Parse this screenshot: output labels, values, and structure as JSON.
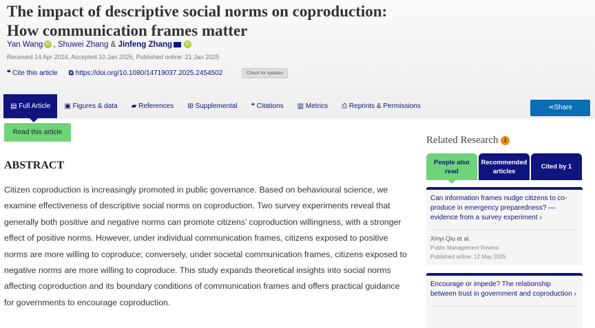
{
  "article": {
    "title_line1": "The impact of descriptive social norms on coproduction:",
    "title_line2": "How communication frames matter",
    "authors": [
      "Yan Wang",
      "Shuwei Zhang",
      "Jinfeng Zhang"
    ],
    "author_sep1": ",",
    "author_sep2": "&",
    "dates": "Received 14 Apr 2024, Accepted 10 Jan 2025, Published online: 21 Jan 2025",
    "cite_label": "Cite this article",
    "doi": "https://doi.org/10.1080/14719037.2025.2454502",
    "check_updates": "Check for updates"
  },
  "nav": {
    "tabs": [
      "Full Article",
      "Figures & data",
      "References",
      "Supplemental",
      "Citations",
      "Metrics",
      "Reprints & Permissions"
    ],
    "share": "Share",
    "read": "Read this article"
  },
  "abstract": {
    "heading": "ABSTRACT",
    "text": "Citizen coproduction is increasingly promoted in public governance. Based on behavioural science, we examine effectiveness of descriptive social norms on coproduction. Two survey experiments reveal that generally both positive and negative norms can promote citizens’ coproduction willingness, with a stronger effect of positive norms. However, under individual communication frames, citizens exposed to positive norms are more willing to coproduce; conversely, under societal communication frames, citizens exposed to negative norms are more willing to coproduce. This study expands theoretical insights into social norms affecting coproduction and its boundary conditions of communication frames and offers practical guidance for governments to encourage coproduction."
  },
  "related": {
    "heading": "Related Research",
    "tabs": [
      "People also read",
      "Recommended articles",
      "Cited by 1"
    ],
    "items": [
      {
        "title": "Can information frames nudge citizens to co-produce in emergency preparedness? — evidence from a survey experiment",
        "authors": "Xinyi Qiu et al.",
        "journal": "Public Management Review",
        "published": "Published online: 12 May 2025"
      },
      {
        "title": "Encourage or impede? The relationship between trust in government and coproduction"
      }
    ]
  },
  "colors": {
    "navy": "#10147e",
    "green": "#6ed477",
    "share": "#0a6eb4",
    "orcid": "#a6ce39"
  }
}
